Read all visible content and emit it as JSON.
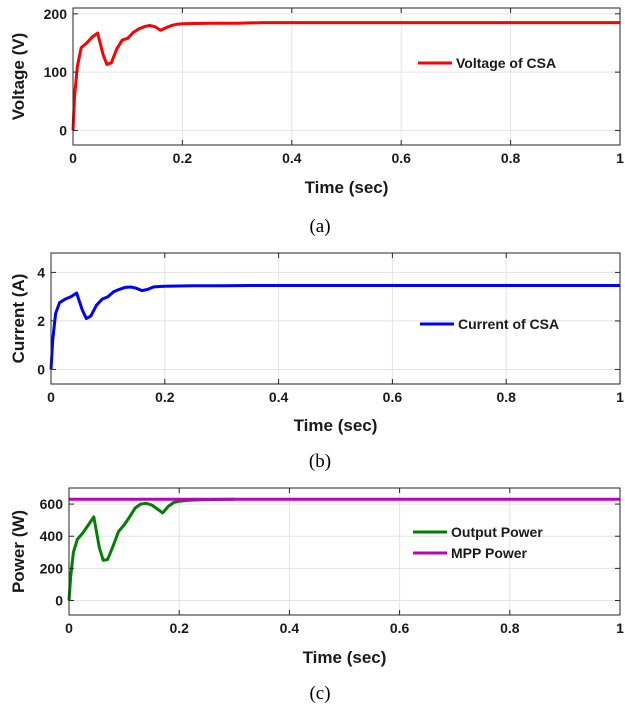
{
  "chart_data": [
    {
      "type": "line",
      "panel_caption": "(a)",
      "xlabel": "Time (sec)",
      "ylabel": "Voltage (V)",
      "xlim": [
        0,
        1
      ],
      "ylim": [
        -25,
        210
      ],
      "xticks": [
        "0",
        "0.2",
        "0.4",
        "0.6",
        "0.8",
        "1"
      ],
      "yticks": [
        "0",
        "100",
        "200"
      ],
      "grid": true,
      "legend_position": "right",
      "series": [
        {
          "name": "Voltage of CSA",
          "color": "#ff0000",
          "x": [
            0,
            0.003,
            0.008,
            0.015,
            0.025,
            0.035,
            0.045,
            0.055,
            0.062,
            0.07,
            0.08,
            0.09,
            0.1,
            0.11,
            0.12,
            0.13,
            0.14,
            0.15,
            0.16,
            0.17,
            0.18,
            0.19,
            0.2,
            0.25,
            0.3,
            0.35,
            0.4,
            0.45,
            0.5,
            0.6,
            0.7,
            0.8,
            0.9,
            1.0
          ],
          "y": [
            0,
            60,
            110,
            142,
            150,
            160,
            167,
            130,
            113,
            116,
            140,
            155,
            158,
            168,
            174,
            178,
            180,
            178,
            172,
            176,
            180,
            182,
            183,
            184,
            184,
            185,
            185,
            185,
            185,
            185,
            185,
            185,
            185,
            185
          ]
        }
      ]
    },
    {
      "type": "line",
      "panel_caption": "(b)",
      "xlabel": "Time (sec)",
      "ylabel": "Current (A)",
      "xlim": [
        0,
        1
      ],
      "ylim": [
        -0.6,
        4.8
      ],
      "xticks": [
        "0",
        "0.2",
        "0.4",
        "0.6",
        "0.8",
        "1"
      ],
      "yticks": [
        "0",
        "2",
        "4"
      ],
      "grid": true,
      "legend_position": "right",
      "series": [
        {
          "name": "Current of CSA",
          "color": "#0000ff",
          "x": [
            0,
            0.003,
            0.008,
            0.015,
            0.025,
            0.035,
            0.045,
            0.055,
            0.062,
            0.07,
            0.08,
            0.09,
            0.1,
            0.11,
            0.12,
            0.13,
            0.14,
            0.15,
            0.16,
            0.17,
            0.18,
            0.19,
            0.2,
            0.25,
            0.3,
            0.35,
            0.4,
            0.45,
            0.5,
            0.6,
            0.7,
            0.8,
            0.9,
            1.0
          ],
          "y": [
            0,
            1.2,
            2.3,
            2.75,
            2.9,
            3.0,
            3.15,
            2.45,
            2.1,
            2.2,
            2.65,
            2.9,
            3.0,
            3.2,
            3.3,
            3.38,
            3.4,
            3.35,
            3.25,
            3.3,
            3.4,
            3.42,
            3.43,
            3.45,
            3.45,
            3.46,
            3.46,
            3.46,
            3.46,
            3.46,
            3.46,
            3.46,
            3.46,
            3.46
          ]
        }
      ]
    },
    {
      "type": "line",
      "panel_caption": "(c)",
      "xlabel": "Time (sec)",
      "ylabel": "Power (W)",
      "xlim": [
        0,
        1
      ],
      "ylim": [
        -90,
        700
      ],
      "xticks": [
        "0",
        "0.2",
        "0.4",
        "0.6",
        "0.8",
        "1"
      ],
      "yticks": [
        "0",
        "200",
        "400",
        "600"
      ],
      "grid": true,
      "legend_position": "right",
      "series": [
        {
          "name": "Output Power",
          "color": "#008000",
          "x": [
            0,
            0.003,
            0.008,
            0.015,
            0.025,
            0.035,
            0.045,
            0.055,
            0.062,
            0.07,
            0.08,
            0.09,
            0.1,
            0.11,
            0.12,
            0.13,
            0.14,
            0.15,
            0.16,
            0.17,
            0.18,
            0.19,
            0.2,
            0.22,
            0.25,
            0.3
          ],
          "y": [
            0,
            150,
            300,
            380,
            420,
            470,
            520,
            330,
            250,
            255,
            340,
            430,
            470,
            520,
            575,
            600,
            605,
            595,
            570,
            545,
            585,
            610,
            618,
            625,
            628,
            630
          ]
        },
        {
          "name": "MPP Power",
          "color": "#bf00bf",
          "x": [
            0,
            1
          ],
          "y": [
            630,
            630
          ]
        }
      ]
    }
  ]
}
